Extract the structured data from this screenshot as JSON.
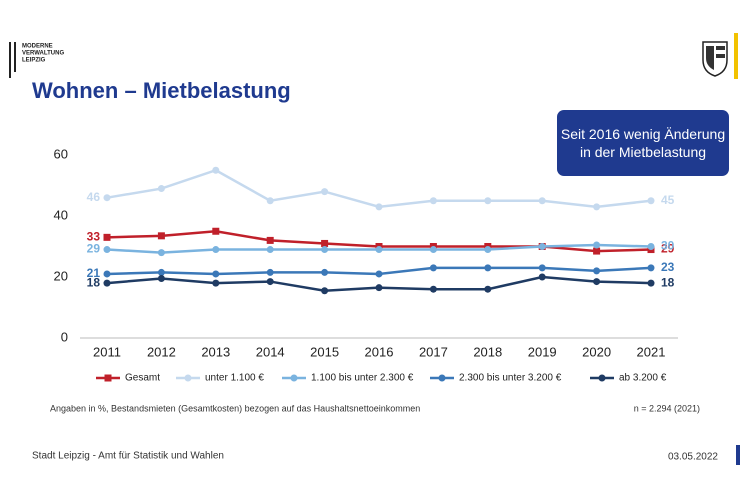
{
  "header": {
    "logo": [
      "MODERNE",
      "VERWALTUNG",
      "LEIPZIG"
    ],
    "title": "Wohnen – Mietbelastung"
  },
  "callout": "Seit 2016 wenig Änderung in der Mietbelastung",
  "chart_data": {
    "type": "line",
    "x": [
      2011,
      2012,
      2013,
      2014,
      2015,
      2016,
      2017,
      2018,
      2019,
      2020,
      2021
    ],
    "xlim": [
      2011,
      2021
    ],
    "ylim": [
      0,
      60
    ],
    "yticks": [
      0,
      20,
      40,
      60
    ],
    "grid": false,
    "series": [
      {
        "name": "Gesamt",
        "color": "#c0202a",
        "marker": "square",
        "values": [
          33,
          33.5,
          35,
          32,
          31,
          30,
          30,
          30,
          30,
          28.5,
          29
        ]
      },
      {
        "name": "unter 1.100 €",
        "color": "#c5d9ee",
        "marker": "circle",
        "values": [
          46,
          49,
          55,
          45,
          48,
          43,
          45,
          45,
          45,
          43,
          45
        ]
      },
      {
        "name": "1.100 bis unter 2.300 €",
        "color": "#7ab3df",
        "marker": "circle",
        "values": [
          29,
          28,
          29,
          29,
          29,
          29,
          29,
          29,
          30,
          30.5,
          30
        ]
      },
      {
        "name": "2.300 bis unter 3.200 €",
        "color": "#3b78b8",
        "marker": "circle",
        "values": [
          21,
          21.5,
          21,
          21.5,
          21.5,
          21,
          23,
          23,
          23,
          22,
          23
        ]
      },
      {
        "name": "ab 3.200 €",
        "color": "#1f3b63",
        "marker": "circle",
        "values": [
          18,
          19.5,
          18,
          18.5,
          15.5,
          16.5,
          16,
          16,
          20,
          18.5,
          18
        ]
      }
    ]
  },
  "footnote": {
    "left": "Angaben in %, Bestandsmieten (Gesamtkosten) bezogen auf das Haushaltsnettoeinkommen",
    "right": "n = 2.294 (2021)"
  },
  "footer": {
    "left": "Stadt Leipzig  -  Amt für Statistik und Wahlen",
    "right": "03.05.2022"
  }
}
